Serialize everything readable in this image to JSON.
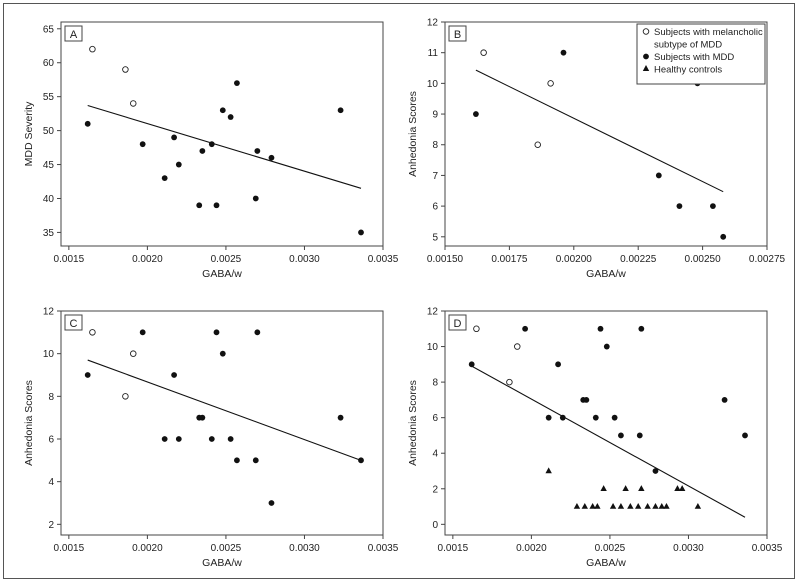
{
  "legend": {
    "entries": [
      {
        "label_lines": [
          "Subjects with melancholic",
          "subtype of MDD"
        ],
        "marker": "open-circle"
      },
      {
        "label_lines": [
          "Subjects with MDD"
        ],
        "marker": "filled-circle"
      },
      {
        "label_lines": [
          "Healthy controls"
        ],
        "marker": "filled-triangle"
      }
    ],
    "placement": "top-right of panel B"
  },
  "chart_data": [
    {
      "type": "scatter",
      "panel_label": "A",
      "xlabel": "GABA/w",
      "ylabel": "MDD Severity",
      "xlim": [
        0.00145,
        0.0035
      ],
      "ylim": [
        33,
        66
      ],
      "xticks": [
        "0.0015",
        "0.0020",
        "0.0025",
        "0.0030",
        "0.0035"
      ],
      "xtick_values": [
        0.0015,
        0.002,
        0.0025,
        0.003,
        0.0035
      ],
      "yticks": [
        "35",
        "40",
        "45",
        "50",
        "55",
        "60",
        "65"
      ],
      "ytick_values": [
        35,
        40,
        45,
        50,
        55,
        60,
        65
      ],
      "grid": false,
      "series": [
        {
          "marker": "open-circle",
          "points": [
            [
              0.00165,
              62
            ],
            [
              0.00186,
              59
            ],
            [
              0.00191,
              54
            ]
          ]
        },
        {
          "marker": "filled-circle",
          "points": [
            [
              0.00162,
              51
            ],
            [
              0.00197,
              48
            ],
            [
              0.00211,
              43
            ],
            [
              0.00217,
              49
            ],
            [
              0.0022,
              45
            ],
            [
              0.00233,
              39
            ],
            [
              0.00235,
              47
            ],
            [
              0.00241,
              48
            ],
            [
              0.00244,
              39
            ],
            [
              0.00248,
              53
            ],
            [
              0.00253,
              52
            ],
            [
              0.00257,
              57
            ],
            [
              0.00269,
              40
            ],
            [
              0.0027,
              47
            ],
            [
              0.00279,
              46
            ],
            [
              0.00323,
              53
            ],
            [
              0.00336,
              35
            ]
          ]
        }
      ],
      "trendline": [
        [
          0.00162,
          53.7
        ],
        [
          0.00336,
          41.5
        ]
      ]
    },
    {
      "type": "scatter",
      "panel_label": "B",
      "xlabel": "GABA/w",
      "ylabel": "Anhedonia Scores",
      "xlim": [
        0.0015,
        0.00275
      ],
      "ylim": [
        4.7,
        12
      ],
      "xticks": [
        "0.00150",
        "0.00175",
        "0.00200",
        "0.00225",
        "0.00250",
        "0.00275"
      ],
      "xtick_values": [
        0.0015,
        0.00175,
        0.002,
        0.00225,
        0.0025,
        0.00275
      ],
      "yticks": [
        "5",
        "6",
        "7",
        "8",
        "9",
        "10",
        "11",
        "12"
      ],
      "ytick_values": [
        5,
        6,
        7,
        8,
        9,
        10,
        11,
        12
      ],
      "grid": false,
      "series": [
        {
          "marker": "open-circle",
          "points": [
            [
              0.00165,
              11
            ],
            [
              0.00186,
              8
            ],
            [
              0.00191,
              10
            ]
          ]
        },
        {
          "marker": "filled-circle",
          "points": [
            [
              0.00162,
              9
            ],
            [
              0.00196,
              11
            ],
            [
              0.00233,
              7
            ],
            [
              0.00241,
              6
            ],
            [
              0.00248,
              10
            ],
            [
              0.00254,
              6
            ],
            [
              0.00258,
              5
            ]
          ]
        }
      ],
      "trendline": [
        [
          0.00162,
          10.43
        ],
        [
          0.00258,
          6.47
        ]
      ]
    },
    {
      "type": "scatter",
      "panel_label": "C",
      "xlabel": "GABA/w",
      "ylabel": "Anhedonia Scores",
      "xlim": [
        0.00145,
        0.0035
      ],
      "ylim": [
        1.5,
        12
      ],
      "xticks": [
        "0.0015",
        "0.0020",
        "0.0025",
        "0.0030",
        "0.0035"
      ],
      "xtick_values": [
        0.0015,
        0.002,
        0.0025,
        0.003,
        0.0035
      ],
      "yticks": [
        "2",
        "4",
        "6",
        "8",
        "10",
        "12"
      ],
      "ytick_values": [
        2,
        4,
        6,
        8,
        10,
        12
      ],
      "grid": false,
      "series": [
        {
          "marker": "open-circle",
          "points": [
            [
              0.00165,
              11
            ],
            [
              0.00186,
              8
            ],
            [
              0.00191,
              10
            ]
          ]
        },
        {
          "marker": "filled-circle",
          "points": [
            [
              0.00162,
              9
            ],
            [
              0.00197,
              11
            ],
            [
              0.00211,
              6
            ],
            [
              0.00217,
              9
            ],
            [
              0.0022,
              6
            ],
            [
              0.00233,
              7
            ],
            [
              0.00235,
              7
            ],
            [
              0.00241,
              6
            ],
            [
              0.00244,
              11
            ],
            [
              0.00248,
              10
            ],
            [
              0.00253,
              6
            ],
            [
              0.00257,
              5
            ],
            [
              0.00269,
              5
            ],
            [
              0.0027,
              11
            ],
            [
              0.00279,
              3
            ],
            [
              0.00323,
              7
            ],
            [
              0.00336,
              5
            ]
          ]
        }
      ],
      "trendline": [
        [
          0.00162,
          9.7
        ],
        [
          0.00336,
          5.0
        ]
      ]
    },
    {
      "type": "scatter",
      "panel_label": "D",
      "xlabel": "GABA/w",
      "ylabel": "Anhedonia Scores",
      "xlim": [
        0.00145,
        0.0035
      ],
      "ylim": [
        -0.6,
        12
      ],
      "xticks": [
        "0.0015",
        "0.0020",
        "0.0025",
        "0.0030",
        "0.0035"
      ],
      "xtick_values": [
        0.0015,
        0.002,
        0.0025,
        0.003,
        0.0035
      ],
      "yticks": [
        "0",
        "2",
        "4",
        "6",
        "8",
        "10",
        "12"
      ],
      "ytick_values": [
        0,
        2,
        4,
        6,
        8,
        10,
        12
      ],
      "grid": false,
      "series": [
        {
          "marker": "open-circle",
          "points": [
            [
              0.00165,
              11
            ],
            [
              0.00186,
              8
            ],
            [
              0.00191,
              10
            ]
          ]
        },
        {
          "marker": "filled-circle",
          "points": [
            [
              0.00162,
              9
            ],
            [
              0.00196,
              11
            ],
            [
              0.00211,
              6
            ],
            [
              0.00217,
              9
            ],
            [
              0.0022,
              6
            ],
            [
              0.00233,
              7
            ],
            [
              0.00235,
              7
            ],
            [
              0.00241,
              6
            ],
            [
              0.00244,
              11
            ],
            [
              0.00248,
              10
            ],
            [
              0.00253,
              6
            ],
            [
              0.00257,
              5
            ],
            [
              0.00269,
              5
            ],
            [
              0.0027,
              11
            ],
            [
              0.00279,
              3
            ],
            [
              0.00323,
              7
            ],
            [
              0.00336,
              5
            ]
          ]
        },
        {
          "marker": "filled-triangle",
          "points": [
            [
              0.00211,
              3
            ],
            [
              0.00229,
              1
            ],
            [
              0.00234,
              1
            ],
            [
              0.00239,
              1
            ],
            [
              0.00242,
              1
            ],
            [
              0.00246,
              2
            ],
            [
              0.00252,
              1
            ],
            [
              0.00257,
              1
            ],
            [
              0.0026,
              2
            ],
            [
              0.00263,
              1
            ],
            [
              0.00268,
              1
            ],
            [
              0.0027,
              2
            ],
            [
              0.00274,
              1
            ],
            [
              0.00279,
              1
            ],
            [
              0.00283,
              1
            ],
            [
              0.00286,
              1
            ],
            [
              0.00293,
              2
            ],
            [
              0.00296,
              2
            ],
            [
              0.00306,
              1
            ]
          ]
        }
      ],
      "trendline": [
        [
          0.00162,
          8.9
        ],
        [
          0.00336,
          0.4
        ]
      ]
    }
  ]
}
